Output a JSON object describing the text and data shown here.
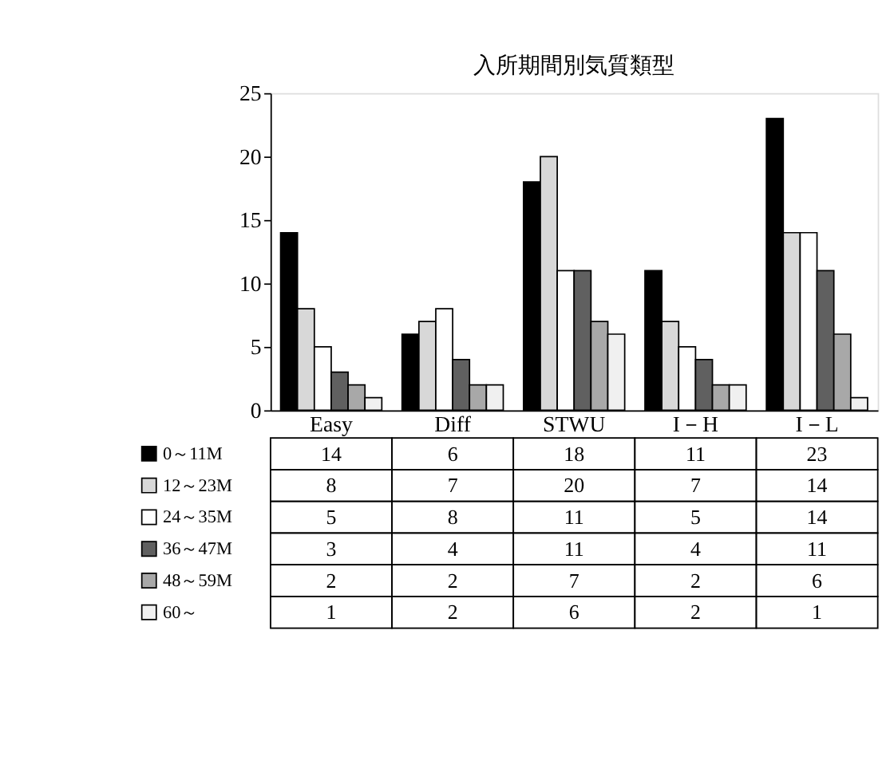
{
  "chart_data": {
    "type": "bar",
    "title": "入所期間別気質類型",
    "categories": [
      "Easy",
      "Diff",
      "STWU",
      "I－H",
      "I－L"
    ],
    "series": [
      {
        "name": "0～11M",
        "color": "#000000",
        "values": [
          14,
          6,
          18,
          11,
          23
        ]
      },
      {
        "name": "12～23M",
        "color": "#d8d8d8",
        "values": [
          8,
          7,
          20,
          7,
          14
        ]
      },
      {
        "name": "24～35M",
        "color": "#ffffff",
        "values": [
          5,
          8,
          11,
          5,
          14
        ]
      },
      {
        "name": "36～47M",
        "color": "#606060",
        "values": [
          3,
          4,
          11,
          4,
          11
        ]
      },
      {
        "name": "48～59M",
        "color": "#a8a8a8",
        "values": [
          2,
          2,
          7,
          2,
          6
        ]
      },
      {
        "name": "60～",
        "color": "#f0f0f0",
        "values": [
          1,
          2,
          6,
          2,
          1
        ]
      }
    ],
    "ylim": [
      0,
      25
    ],
    "yticks": [
      0,
      5,
      10,
      15,
      20,
      25
    ],
    "data_labels": true,
    "legend": "bottom"
  }
}
